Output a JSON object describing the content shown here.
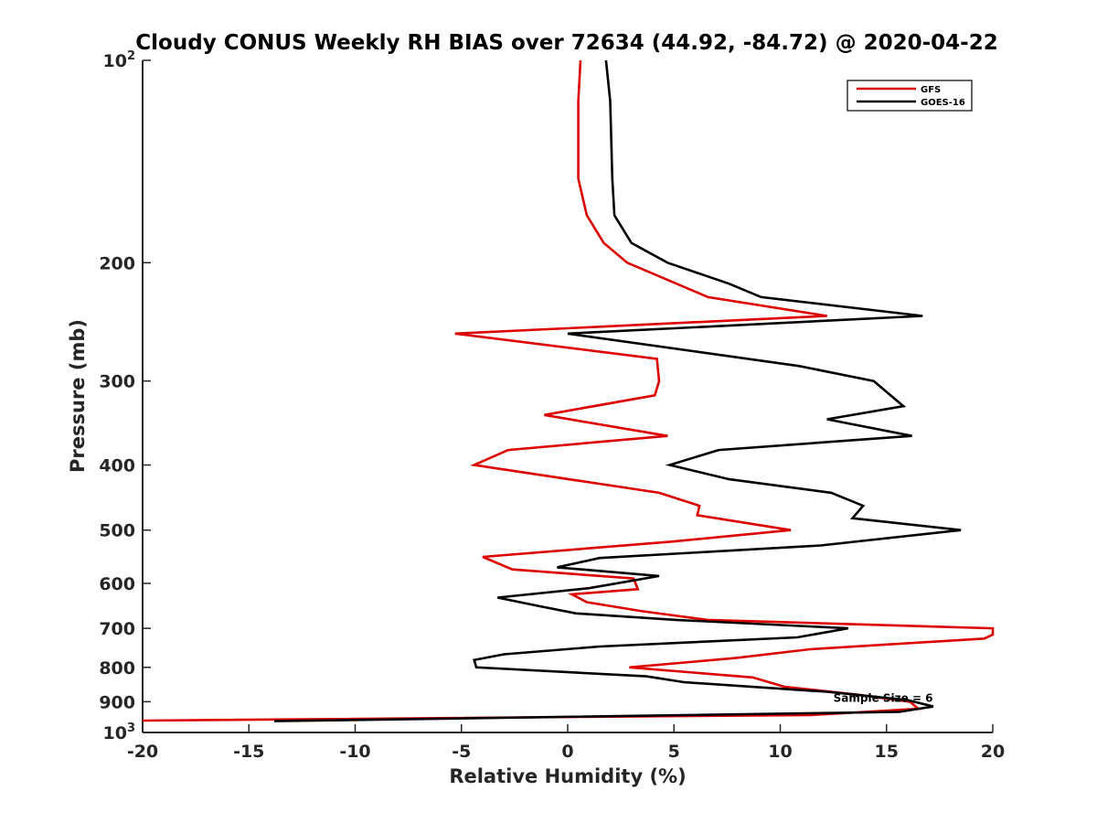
{
  "chart_data": {
    "type": "line",
    "title": "Cloudy CONUS Weekly RH BIAS over 72634 (44.92, -84.72) @ 2020-04-22",
    "xlabel": "Relative Humidity (%)",
    "ylabel": "Pressure (mb)",
    "xlim": [
      -20,
      20
    ],
    "ylim": [
      100,
      1000
    ],
    "y_scale": "log",
    "y_reversed": true,
    "grid": false,
    "legend_position": "top-right",
    "x_ticks": [
      "-20",
      "-15",
      "-10",
      "-5",
      "0",
      "5",
      "10",
      "15",
      "20"
    ],
    "y_ticks": [
      {
        "value": 100,
        "label": "10",
        "sup": "2"
      },
      {
        "value": 200,
        "label": "200",
        "sup": ""
      },
      {
        "value": 300,
        "label": "300",
        "sup": ""
      },
      {
        "value": 400,
        "label": "400",
        "sup": ""
      },
      {
        "value": 500,
        "label": "500",
        "sup": ""
      },
      {
        "value": 600,
        "label": "600",
        "sup": ""
      },
      {
        "value": 700,
        "label": "700",
        "sup": ""
      },
      {
        "value": 800,
        "label": "800",
        "sup": ""
      },
      {
        "value": 900,
        "label": "900",
        "sup": ""
      },
      {
        "value": 1000,
        "label": "10",
        "sup": "3"
      }
    ],
    "series": [
      {
        "name": "GFS",
        "color": "#dd0000",
        "points": [
          [
            0.6,
            100
          ],
          [
            0.5,
            115
          ],
          [
            0.5,
            150
          ],
          [
            0.9,
            170
          ],
          [
            1.7,
            187
          ],
          [
            2.8,
            200
          ],
          [
            6.6,
            225
          ],
          [
            12.2,
            240
          ],
          [
            -5.3,
            255
          ],
          [
            4.2,
            278
          ],
          [
            4.3,
            300
          ],
          [
            4.1,
            315
          ],
          [
            -1.1,
            337
          ],
          [
            4.7,
            362
          ],
          [
            -2.8,
            380
          ],
          [
            -4.4,
            400
          ],
          [
            4.3,
            440
          ],
          [
            6.2,
            460
          ],
          [
            6.1,
            475
          ],
          [
            10.5,
            500
          ],
          [
            4.9,
            520
          ],
          [
            -4.0,
            548
          ],
          [
            -2.6,
            572
          ],
          [
            3.1,
            590
          ],
          [
            3.3,
            612
          ],
          [
            0.2,
            623
          ],
          [
            0.9,
            640
          ],
          [
            3.5,
            660
          ],
          [
            6.6,
            680
          ],
          [
            20.0,
            700
          ],
          [
            20.0,
            715
          ],
          [
            19.6,
            725
          ],
          [
            11.4,
            752
          ],
          [
            7.9,
            775
          ],
          [
            2.9,
            800
          ],
          [
            8.7,
            828
          ],
          [
            10.2,
            855
          ],
          [
            13.6,
            878
          ],
          [
            16.1,
            900
          ],
          [
            16.5,
            922
          ],
          [
            11.5,
            942
          ],
          [
            -20.0,
            960
          ]
        ]
      },
      {
        "name": "GOES-16",
        "color": "#000000",
        "points": [
          [
            1.8,
            100
          ],
          [
            2.0,
            115
          ],
          [
            2.1,
            150
          ],
          [
            2.2,
            170
          ],
          [
            3.0,
            187
          ],
          [
            4.7,
            200
          ],
          [
            7.6,
            215
          ],
          [
            9.1,
            225
          ],
          [
            16.7,
            240
          ],
          [
            0.0,
            255
          ],
          [
            10.9,
            285
          ],
          [
            14.4,
            300
          ],
          [
            15.8,
            327
          ],
          [
            12.2,
            342
          ],
          [
            16.2,
            362
          ],
          [
            7.1,
            380
          ],
          [
            4.8,
            400
          ],
          [
            7.6,
            420
          ],
          [
            12.4,
            440
          ],
          [
            13.9,
            460
          ],
          [
            13.4,
            480
          ],
          [
            18.5,
            500
          ],
          [
            11.9,
            527
          ],
          [
            1.5,
            550
          ],
          [
            -0.5,
            568
          ],
          [
            4.3,
            585
          ],
          [
            1.0,
            610
          ],
          [
            -3.3,
            630
          ],
          [
            -1.2,
            650
          ],
          [
            0.4,
            665
          ],
          [
            5.1,
            680
          ],
          [
            13.2,
            700
          ],
          [
            10.8,
            722
          ],
          [
            1.5,
            745
          ],
          [
            -3.0,
            765
          ],
          [
            -4.4,
            780
          ],
          [
            -4.3,
            800
          ],
          [
            3.7,
            825
          ],
          [
            5.5,
            842
          ],
          [
            12.2,
            870
          ],
          [
            16.0,
            895
          ],
          [
            17.2,
            915
          ],
          [
            15.6,
            932
          ],
          [
            -13.8,
            962
          ]
        ]
      }
    ],
    "annotations": [
      {
        "text": "Sample Size = 6",
        "x": 12.5,
        "y": 915
      }
    ]
  }
}
